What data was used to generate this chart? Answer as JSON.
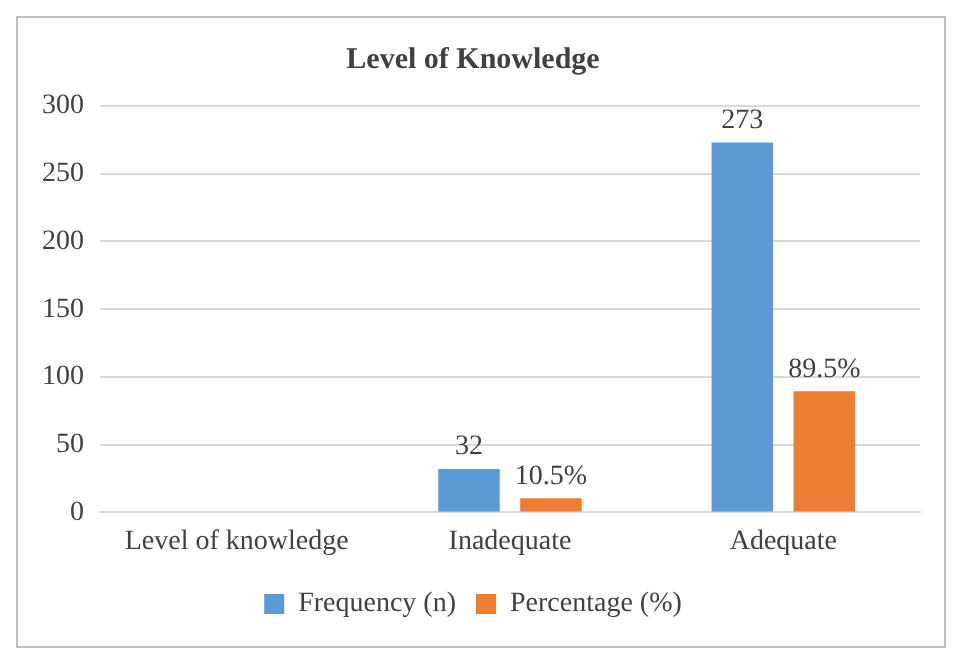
{
  "chart_data": {
    "type": "bar",
    "title": "Level of Knowledge",
    "categories": [
      "Level of knowledge",
      "Inadequate",
      "Adequate"
    ],
    "series": [
      {
        "name": "Frequency (n)",
        "color": "#5b9bd5",
        "values": [
          null,
          32,
          273
        ],
        "value_labels": [
          null,
          "32",
          "273"
        ]
      },
      {
        "name": "Percentage (%)",
        "color": "#ed7d31",
        "values": [
          null,
          10.5,
          89.5
        ],
        "value_labels": [
          null,
          "10.5%",
          "89.5%"
        ]
      }
    ],
    "ylim": [
      0,
      300
    ],
    "yticks": [
      0,
      50,
      100,
      150,
      200,
      250,
      300
    ],
    "grid": "y",
    "legend": "bottom"
  }
}
